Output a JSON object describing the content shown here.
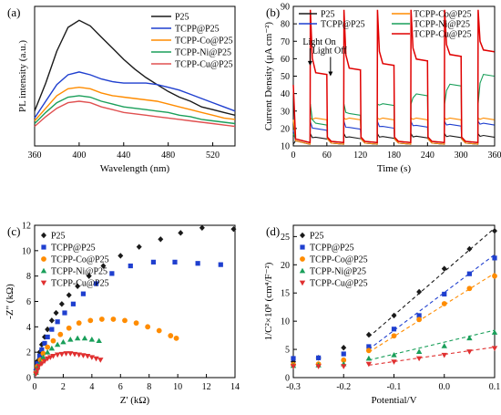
{
  "figure": {
    "background": "#ffffff"
  },
  "chart_data": [
    {
      "panel_label": "(a)",
      "type": "line",
      "xlabel": "Wavelength (nm)",
      "ylabel": "PL intensity (a.u.)",
      "xlim": [
        360,
        540
      ],
      "ylim": [
        0,
        100
      ],
      "xticks": [
        360,
        400,
        440,
        480,
        520
      ],
      "yticks": [],
      "grid": false,
      "legend_position": "top-right",
      "series": [
        {
          "name": "P25",
          "color": "#1a1a1a",
          "x": [
            360,
            370,
            380,
            390,
            400,
            410,
            420,
            430,
            440,
            450,
            460,
            470,
            480,
            490,
            500,
            510,
            520,
            530,
            540
          ],
          "y": [
            25,
            45,
            68,
            85,
            90,
            86,
            78,
            70,
            62,
            55,
            49,
            44,
            39,
            35,
            32,
            28,
            26,
            24,
            22
          ]
        },
        {
          "name": "TCPP@P25",
          "color": "#1f3fcf",
          "x": [
            360,
            370,
            380,
            390,
            400,
            410,
            420,
            430,
            440,
            450,
            460,
            470,
            480,
            490,
            500,
            510,
            520,
            530,
            540
          ],
          "y": [
            20,
            32,
            44,
            51,
            53,
            51,
            48,
            46,
            45,
            45,
            45,
            44,
            42,
            40,
            37,
            34,
            31,
            28,
            25
          ]
        },
        {
          "name": "TCPP-Co@P25",
          "color": "#ff8c00",
          "x": [
            360,
            370,
            380,
            390,
            400,
            410,
            420,
            430,
            440,
            450,
            460,
            470,
            480,
            490,
            500,
            510,
            520,
            530,
            540
          ],
          "y": [
            18,
            27,
            36,
            41,
            42,
            41,
            38,
            36,
            35,
            34,
            33,
            32,
            30,
            28,
            26,
            24,
            22,
            20,
            19
          ]
        },
        {
          "name": "TCPP-Ni@P25",
          "color": "#1a9f5a",
          "x": [
            360,
            370,
            380,
            390,
            400,
            410,
            420,
            430,
            440,
            450,
            460,
            470,
            480,
            490,
            500,
            510,
            520,
            530,
            540
          ],
          "y": [
            16,
            24,
            31,
            35,
            36,
            35,
            32,
            30,
            28,
            27,
            26,
            25,
            24,
            22,
            21,
            19,
            18,
            17,
            16
          ]
        },
        {
          "name": "TCPP-Cu@P25",
          "color": "#e05050",
          "x": [
            360,
            370,
            380,
            390,
            400,
            410,
            420,
            430,
            440,
            450,
            460,
            470,
            480,
            490,
            500,
            510,
            520,
            530,
            540
          ],
          "y": [
            14,
            21,
            27,
            31,
            32,
            31,
            28,
            26,
            24,
            23,
            22,
            21,
            20,
            19,
            18,
            17,
            16,
            15,
            14
          ]
        }
      ]
    },
    {
      "panel_label": "(b)",
      "type": "line",
      "xlabel": "Time (s)",
      "ylabel": "Current Density (μA cm⁻²)",
      "xlim": [
        0,
        360
      ],
      "ylim": [
        10,
        90
      ],
      "xticks": [
        0,
        60,
        120,
        180,
        240,
        300,
        360
      ],
      "yticks": [
        10,
        20,
        30,
        40,
        50,
        60,
        70,
        80,
        90
      ],
      "grid": false,
      "legend_position": "top",
      "annotations": [
        {
          "text": "Light On",
          "x": 30,
          "y": 66
        },
        {
          "text": "Light Off",
          "x": 60,
          "y": 61
        }
      ],
      "light_on_times": [
        30,
        90,
        150,
        210,
        270,
        330
      ],
      "light_off_times": [
        60,
        120,
        180,
        240,
        300,
        360
      ],
      "series": [
        {
          "name": "P25",
          "color": "#1a1a1a",
          "dark": 11,
          "spike": 17,
          "plateau": [
            14,
            15
          ]
        },
        {
          "name": "TCPP@P25",
          "color": "#1f3fcf",
          "dark": 11,
          "spike": 24,
          "plateau": [
            19,
            22
          ]
        },
        {
          "name": "TCPP-Co@P25",
          "color": "#ff8c00",
          "dark": 11,
          "spike": 26,
          "plateau": [
            25,
            25
          ]
        },
        {
          "name": "TCPP-Ni@P25",
          "color": "#1a9f5a",
          "dark": 12,
          "spike": 34,
          "plateau": [
            22,
            50
          ]
        },
        {
          "name": "TCPP-Cu@P25",
          "color": "#e00000",
          "dark": 12,
          "spike": 88,
          "plateau": [
            51,
            64
          ]
        }
      ]
    },
    {
      "panel_label": "(c)",
      "type": "scatter",
      "xlabel": "Z' (kΩ)",
      "ylabel": "-Z\" (kΩ)",
      "xlim": [
        0,
        14
      ],
      "ylim": [
        0,
        12
      ],
      "xticks": [
        0,
        2,
        4,
        6,
        8,
        10,
        12,
        14
      ],
      "yticks": [
        0,
        2,
        4,
        6,
        8,
        10,
        12
      ],
      "grid": false,
      "legend_position": "top-left",
      "series": [
        {
          "name": "P25",
          "color": "#1a1a1a",
          "marker": "diamond",
          "x": [
            0.1,
            0.2,
            0.35,
            0.5,
            0.7,
            0.9,
            1.2,
            1.5,
            1.9,
            2.4,
            3.0,
            3.8,
            4.8,
            6.0,
            7.3,
            8.8,
            10.2,
            11.7,
            13.9
          ],
          "y": [
            0.6,
            1.3,
            2.0,
            2.6,
            3.2,
            3.8,
            4.5,
            5.1,
            5.8,
            6.5,
            7.2,
            8.0,
            8.8,
            9.6,
            10.3,
            10.9,
            11.4,
            11.8,
            11.7
          ]
        },
        {
          "name": "TCPP@P25",
          "color": "#1f3fcf",
          "marker": "square",
          "x": [
            0.1,
            0.2,
            0.35,
            0.5,
            0.7,
            0.9,
            1.2,
            1.6,
            2.1,
            2.7,
            3.4,
            4.3,
            5.4,
            6.7,
            8.3,
            9.8,
            11.4,
            13.0
          ],
          "y": [
            0.5,
            1.1,
            1.7,
            2.2,
            2.7,
            3.2,
            3.8,
            4.4,
            5.1,
            5.8,
            6.6,
            7.4,
            8.2,
            8.8,
            9.1,
            9.1,
            9.0,
            8.9
          ]
        },
        {
          "name": "TCPP-Co@P25",
          "color": "#ff8c00",
          "marker": "circle",
          "x": [
            0.1,
            0.2,
            0.4,
            0.6,
            0.9,
            1.3,
            1.8,
            2.4,
            3.1,
            3.9,
            4.7,
            5.5,
            6.3,
            7.1,
            7.9,
            8.7,
            9.5,
            9.9
          ],
          "y": [
            0.4,
            0.9,
            1.4,
            1.9,
            2.4,
            2.9,
            3.4,
            3.9,
            4.3,
            4.5,
            4.6,
            4.6,
            4.5,
            4.3,
            4.0,
            3.7,
            3.3,
            3.1
          ]
        },
        {
          "name": "TCPP-Ni@P25",
          "color": "#1a9f5a",
          "marker": "triangle-up",
          "x": [
            0.1,
            0.2,
            0.4,
            0.6,
            0.9,
            1.2,
            1.6,
            2.0,
            2.5,
            3.0,
            3.5,
            4.0,
            4.5
          ],
          "y": [
            0.4,
            0.8,
            1.2,
            1.6,
            2.0,
            2.3,
            2.6,
            2.8,
            3.0,
            3.1,
            3.1,
            3.0,
            2.9
          ]
        },
        {
          "name": "TCPP-Cu@P25",
          "color": "#e03030",
          "marker": "triangle-down",
          "x": [
            0.1,
            0.2,
            0.3,
            0.5,
            0.7,
            0.9,
            1.1,
            1.3,
            1.6,
            1.9,
            2.2,
            2.5,
            2.8,
            3.1,
            3.4,
            3.7,
            4.0,
            4.3,
            4.6
          ],
          "y": [
            0.3,
            0.6,
            0.9,
            1.1,
            1.3,
            1.5,
            1.6,
            1.7,
            1.8,
            1.85,
            1.9,
            1.9,
            1.85,
            1.8,
            1.75,
            1.7,
            1.6,
            1.5,
            1.4
          ]
        }
      ]
    },
    {
      "panel_label": "(d)",
      "type": "scatter",
      "xlabel": "Potential/V",
      "ylabel": "1/C²×10⁸ (cm⁴/F⁻²)",
      "xlim": [
        -0.3,
        0.1
      ],
      "ylim": [
        0,
        27
      ],
      "xticks": [
        -0.3,
        -0.2,
        -0.1,
        0.0,
        0.1
      ],
      "xtick_labels": [
        "-0.3",
        "-0.2",
        "-0.1",
        "0.0",
        "0.1"
      ],
      "yticks": [
        0,
        5,
        10,
        15,
        20,
        25
      ],
      "grid": false,
      "legend_position": "top-left",
      "series": [
        {
          "name": "P25",
          "color": "#1a1a1a",
          "marker": "diamond",
          "x": [
            -0.3,
            -0.25,
            -0.2,
            -0.15,
            -0.1,
            -0.05,
            0.0,
            0.05,
            0.1
          ],
          "y": [
            2.8,
            3.5,
            5.3,
            7.6,
            11.0,
            15.2,
            19.3,
            22.8,
            26.0
          ],
          "fit": [
            [
              -0.15,
              7.2
            ],
            [
              0.1,
              26.5
            ]
          ]
        },
        {
          "name": "TCPP@P25",
          "color": "#1f3fcf",
          "marker": "square",
          "x": [
            -0.3,
            -0.25,
            -0.2,
            -0.15,
            -0.1,
            -0.05,
            0.0,
            0.05,
            0.1
          ],
          "y": [
            3.4,
            3.5,
            4.2,
            5.5,
            8.6,
            11.0,
            14.8,
            18.4,
            21.2
          ],
          "fit": [
            [
              -0.15,
              5.0
            ],
            [
              0.1,
              21.8
            ]
          ]
        },
        {
          "name": "TCPP-Co@P25",
          "color": "#ff8c00",
          "marker": "circle",
          "x": [
            -0.3,
            -0.25,
            -0.2,
            -0.15,
            -0.1,
            -0.05,
            0.0,
            0.05,
            0.1
          ],
          "y": [
            2.3,
            2.4,
            3.1,
            4.8,
            7.4,
            10.3,
            13.1,
            15.8,
            18.0
          ],
          "fit": [
            [
              -0.15,
              4.5
            ],
            [
              0.1,
              18.5
            ]
          ]
        },
        {
          "name": "TCPP-Ni@P25",
          "color": "#1a9f5a",
          "marker": "triangle-up",
          "x": [
            -0.3,
            -0.25,
            -0.2,
            -0.15,
            -0.1,
            -0.05,
            0.0,
            0.05,
            0.1
          ],
          "y": [
            2.1,
            2.2,
            2.4,
            3.4,
            4.0,
            4.6,
            5.6,
            7.0,
            8.0
          ],
          "fit": [
            [
              -0.15,
              3.1
            ],
            [
              0.1,
              8.4
            ]
          ]
        },
        {
          "name": "TCPP-Cu@P25",
          "color": "#e03030",
          "marker": "triangle-down",
          "x": [
            -0.3,
            -0.25,
            -0.2,
            -0.15,
            -0.1,
            -0.05,
            0.0,
            0.05,
            0.1
          ],
          "y": [
            2.0,
            2.0,
            2.0,
            2.4,
            2.8,
            3.4,
            4.0,
            4.6,
            5.2
          ],
          "fit": [
            [
              -0.15,
              2.2
            ],
            [
              0.1,
              5.4
            ]
          ]
        }
      ]
    }
  ]
}
